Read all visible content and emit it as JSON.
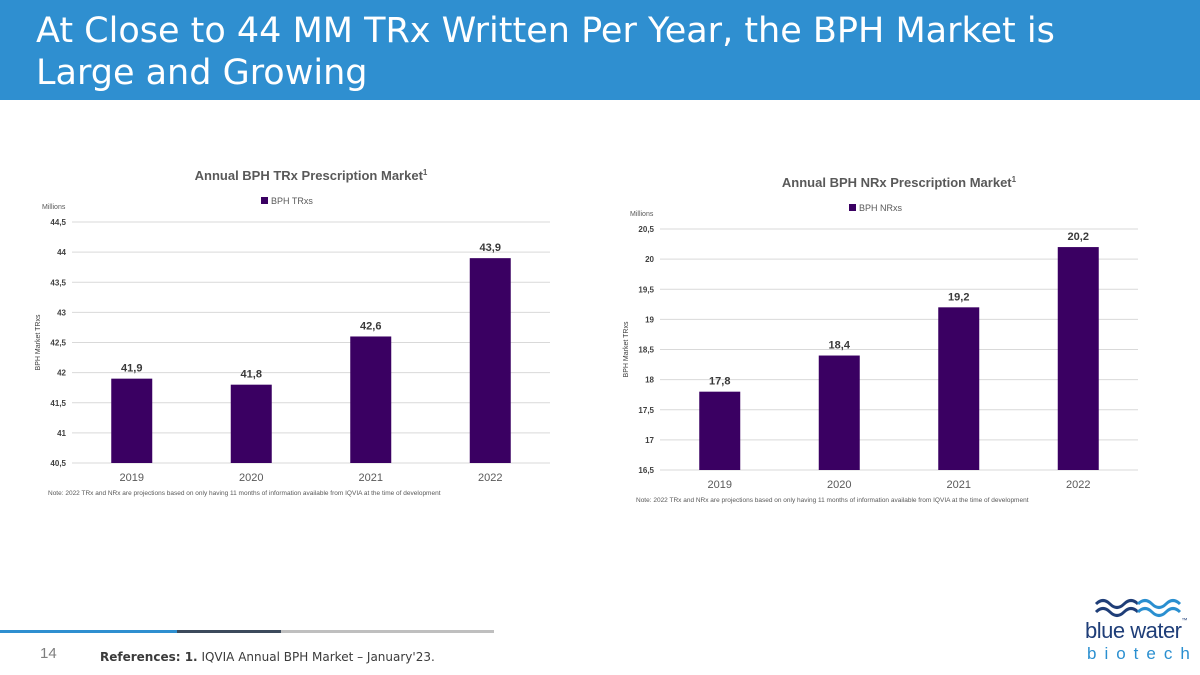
{
  "slide": {
    "title": "At Close to 44 MM TRx Written Per Year, the BPH Market is Large and Growing",
    "page_number": "14",
    "references_label": "References: 1.",
    "references_text": " IQVIA Annual BPH Market – January'23."
  },
  "logo": {
    "line1": "blue water",
    "tm": "™",
    "line2": "biotech"
  },
  "colors": {
    "header": "#2f8fd0",
    "bar": "#3a0062",
    "grid": "#d9d9d9",
    "footer_blue": "#2f8fd0",
    "footer_dark": "#3c4a5c",
    "footer_grey": "#bfbfbf"
  },
  "chart_data": [
    {
      "type": "bar",
      "title": "Annual BPH TRx Prescription Market",
      "title_sup": "1",
      "units_label": "Millions",
      "legend": "BPH TRxs",
      "ylabel": "BPH Market TRxs",
      "categories": [
        "2019",
        "2020",
        "2021",
        "2022"
      ],
      "values": [
        41.9,
        41.8,
        42.6,
        43.9
      ],
      "value_labels": [
        "41,9",
        "41,8",
        "42,6",
        "43,9"
      ],
      "ylim": [
        40.5,
        44.5
      ],
      "yticks": [
        "40,5",
        "41",
        "41,5",
        "42",
        "42,5",
        "43",
        "43,5",
        "44",
        "44,5"
      ],
      "note": "Note: 2022 TRx and NRx are projections based on only having 11 months of information available from IQVIA at the time of development"
    },
    {
      "type": "bar",
      "title": "Annual BPH NRx Prescription Market",
      "title_sup": "1",
      "units_label": "Millions",
      "legend": "BPH NRxs",
      "ylabel": "BPH Market TRxs",
      "categories": [
        "2019",
        "2020",
        "2021",
        "2022"
      ],
      "values": [
        17.8,
        18.4,
        19.2,
        20.2
      ],
      "value_labels": [
        "17,8",
        "18,4",
        "19,2",
        "20,2"
      ],
      "ylim": [
        16.5,
        20.5
      ],
      "yticks": [
        "16,5",
        "17",
        "17,5",
        "18",
        "18,5",
        "19",
        "19,5",
        "20",
        "20,5"
      ],
      "note": "Note: 2022 TRx and NRx are projections based on only having 11 months of information available from IQVIA at the time of development"
    }
  ]
}
